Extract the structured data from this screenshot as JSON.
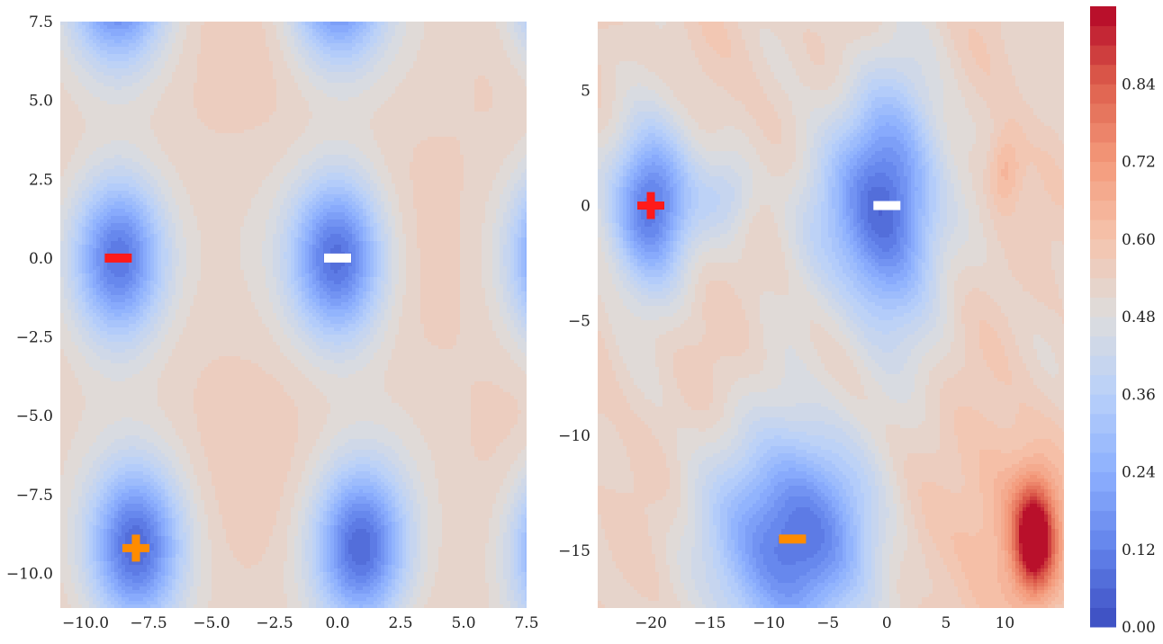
{
  "chart_data": [
    {
      "type": "contourf",
      "xlim": [
        -11.0,
        7.5
      ],
      "ylim": [
        -11.1,
        7.5
      ],
      "xticks": [
        -10.0,
        -7.5,
        -5.0,
        -2.5,
        0.0,
        2.5,
        5.0,
        7.5
      ],
      "yticks": [
        7.5,
        5.0,
        2.5,
        0.0,
        -2.5,
        -5.0,
        -7.5,
        -10.0
      ],
      "xtick_labels": [
        "−10.0",
        "−7.5",
        "−5.0",
        "−2.5",
        "0.0",
        "2.5",
        "5.0",
        "7.5"
      ],
      "ytick_labels": [
        "7.5",
        "5.0",
        "2.5",
        "0.0",
        "−2.5",
        "−5.0",
        "−7.5",
        "−10.0"
      ],
      "minima": [
        {
          "x": -8.7,
          "y": 0.0,
          "depth": 0.47,
          "sx": 1.3,
          "sy": 1.8
        },
        {
          "x": 0.0,
          "y": 0.0,
          "depth": 0.47,
          "sx": 1.3,
          "sy": 1.8
        },
        {
          "x": -8.0,
          "y": -9.2,
          "depth": 0.47,
          "sx": 1.3,
          "sy": 1.8
        },
        {
          "x": 0.9,
          "y": -9.2,
          "depth": 0.47,
          "sx": 1.3,
          "sy": 1.8
        },
        {
          "x": 8.9,
          "y": 0.0,
          "depth": 0.47,
          "sx": 1.3,
          "sy": 1.8
        },
        {
          "x": 8.9,
          "y": -9.2,
          "depth": 0.47,
          "sx": 1.3,
          "sy": 1.8
        },
        {
          "x": -8.7,
          "y": 8.9,
          "depth": 0.47,
          "sx": 1.3,
          "sy": 1.8
        },
        {
          "x": 0.0,
          "y": 8.9,
          "depth": 0.47,
          "sx": 1.3,
          "sy": 1.8
        },
        {
          "x": 8.9,
          "y": 8.9,
          "depth": 0.47,
          "sx": 1.3,
          "sy": 1.8
        }
      ],
      "markers": [
        {
          "type": "minus",
          "x": -8.7,
          "y": 0.0,
          "color": "#ff1a1a"
        },
        {
          "type": "minus",
          "x": 0.0,
          "y": 0.0,
          "color": "#ffffff"
        },
        {
          "type": "plus",
          "x": -8.0,
          "y": -9.2,
          "color": "#ff8c00"
        }
      ]
    },
    {
      "type": "contourf",
      "xlim": [
        -24.5,
        15.0
      ],
      "ylim": [
        -17.5,
        8.0
      ],
      "xticks": [
        -20,
        -15,
        -10,
        -5,
        0,
        5,
        10
      ],
      "yticks": [
        5,
        0,
        -5,
        -10,
        -15
      ],
      "xtick_labels": [
        "−20",
        "−15",
        "−10",
        "−5",
        "0",
        "5",
        "10"
      ],
      "ytick_labels": [
        "5",
        "0",
        "−5",
        "−10",
        "−15"
      ],
      "minima": [
        {
          "x": -20.0,
          "y": 0.0,
          "depth": 0.47,
          "sx": 2.3,
          "sy": 2.4
        },
        {
          "x": 0.0,
          "y": 0.0,
          "depth": 0.47,
          "sx": 3.0,
          "sy": 3.6
        },
        {
          "x": -8.0,
          "y": -14.5,
          "depth": 0.47,
          "sx": 4.5,
          "sy": 3.2
        },
        {
          "x": -13.5,
          "y": 0.5,
          "depth": 0.12,
          "sx": 1.8,
          "sy": 1.3
        },
        {
          "x": -6.0,
          "y": -0.5,
          "depth": 0.1,
          "sx": 2.5,
          "sy": 2.5
        }
      ],
      "maxima": [
        {
          "x": 12.5,
          "y": -14.5,
          "height": 0.43,
          "sx": 1.2,
          "sy": 1.6
        },
        {
          "x": 10.5,
          "y": -14.0,
          "height": 0.12,
          "sx": 4.0,
          "sy": 3.0
        },
        {
          "x": 10.0,
          "y": 1.5,
          "height": 0.12,
          "sx": 1.0,
          "sy": 1.2
        }
      ],
      "markers": [
        {
          "type": "plus",
          "x": -20.0,
          "y": 0.0,
          "color": "#ff1a1a"
        },
        {
          "type": "minus",
          "x": 0.0,
          "y": 0.0,
          "color": "#ffffff"
        },
        {
          "type": "minus",
          "x": -8.0,
          "y": -14.5,
          "color": "#ff8c00"
        }
      ]
    }
  ],
  "colorbar": {
    "colormap": "coolwarm",
    "vmin": 0.0,
    "vmax": 0.96,
    "levels": 32,
    "ticks": [
      0.0,
      0.12,
      0.24,
      0.36,
      0.48,
      0.6,
      0.72,
      0.84
    ],
    "tick_labels": [
      "0.00",
      "0.12",
      "0.24",
      "0.36",
      "0.48",
      "0.60",
      "0.72",
      "0.84"
    ]
  }
}
